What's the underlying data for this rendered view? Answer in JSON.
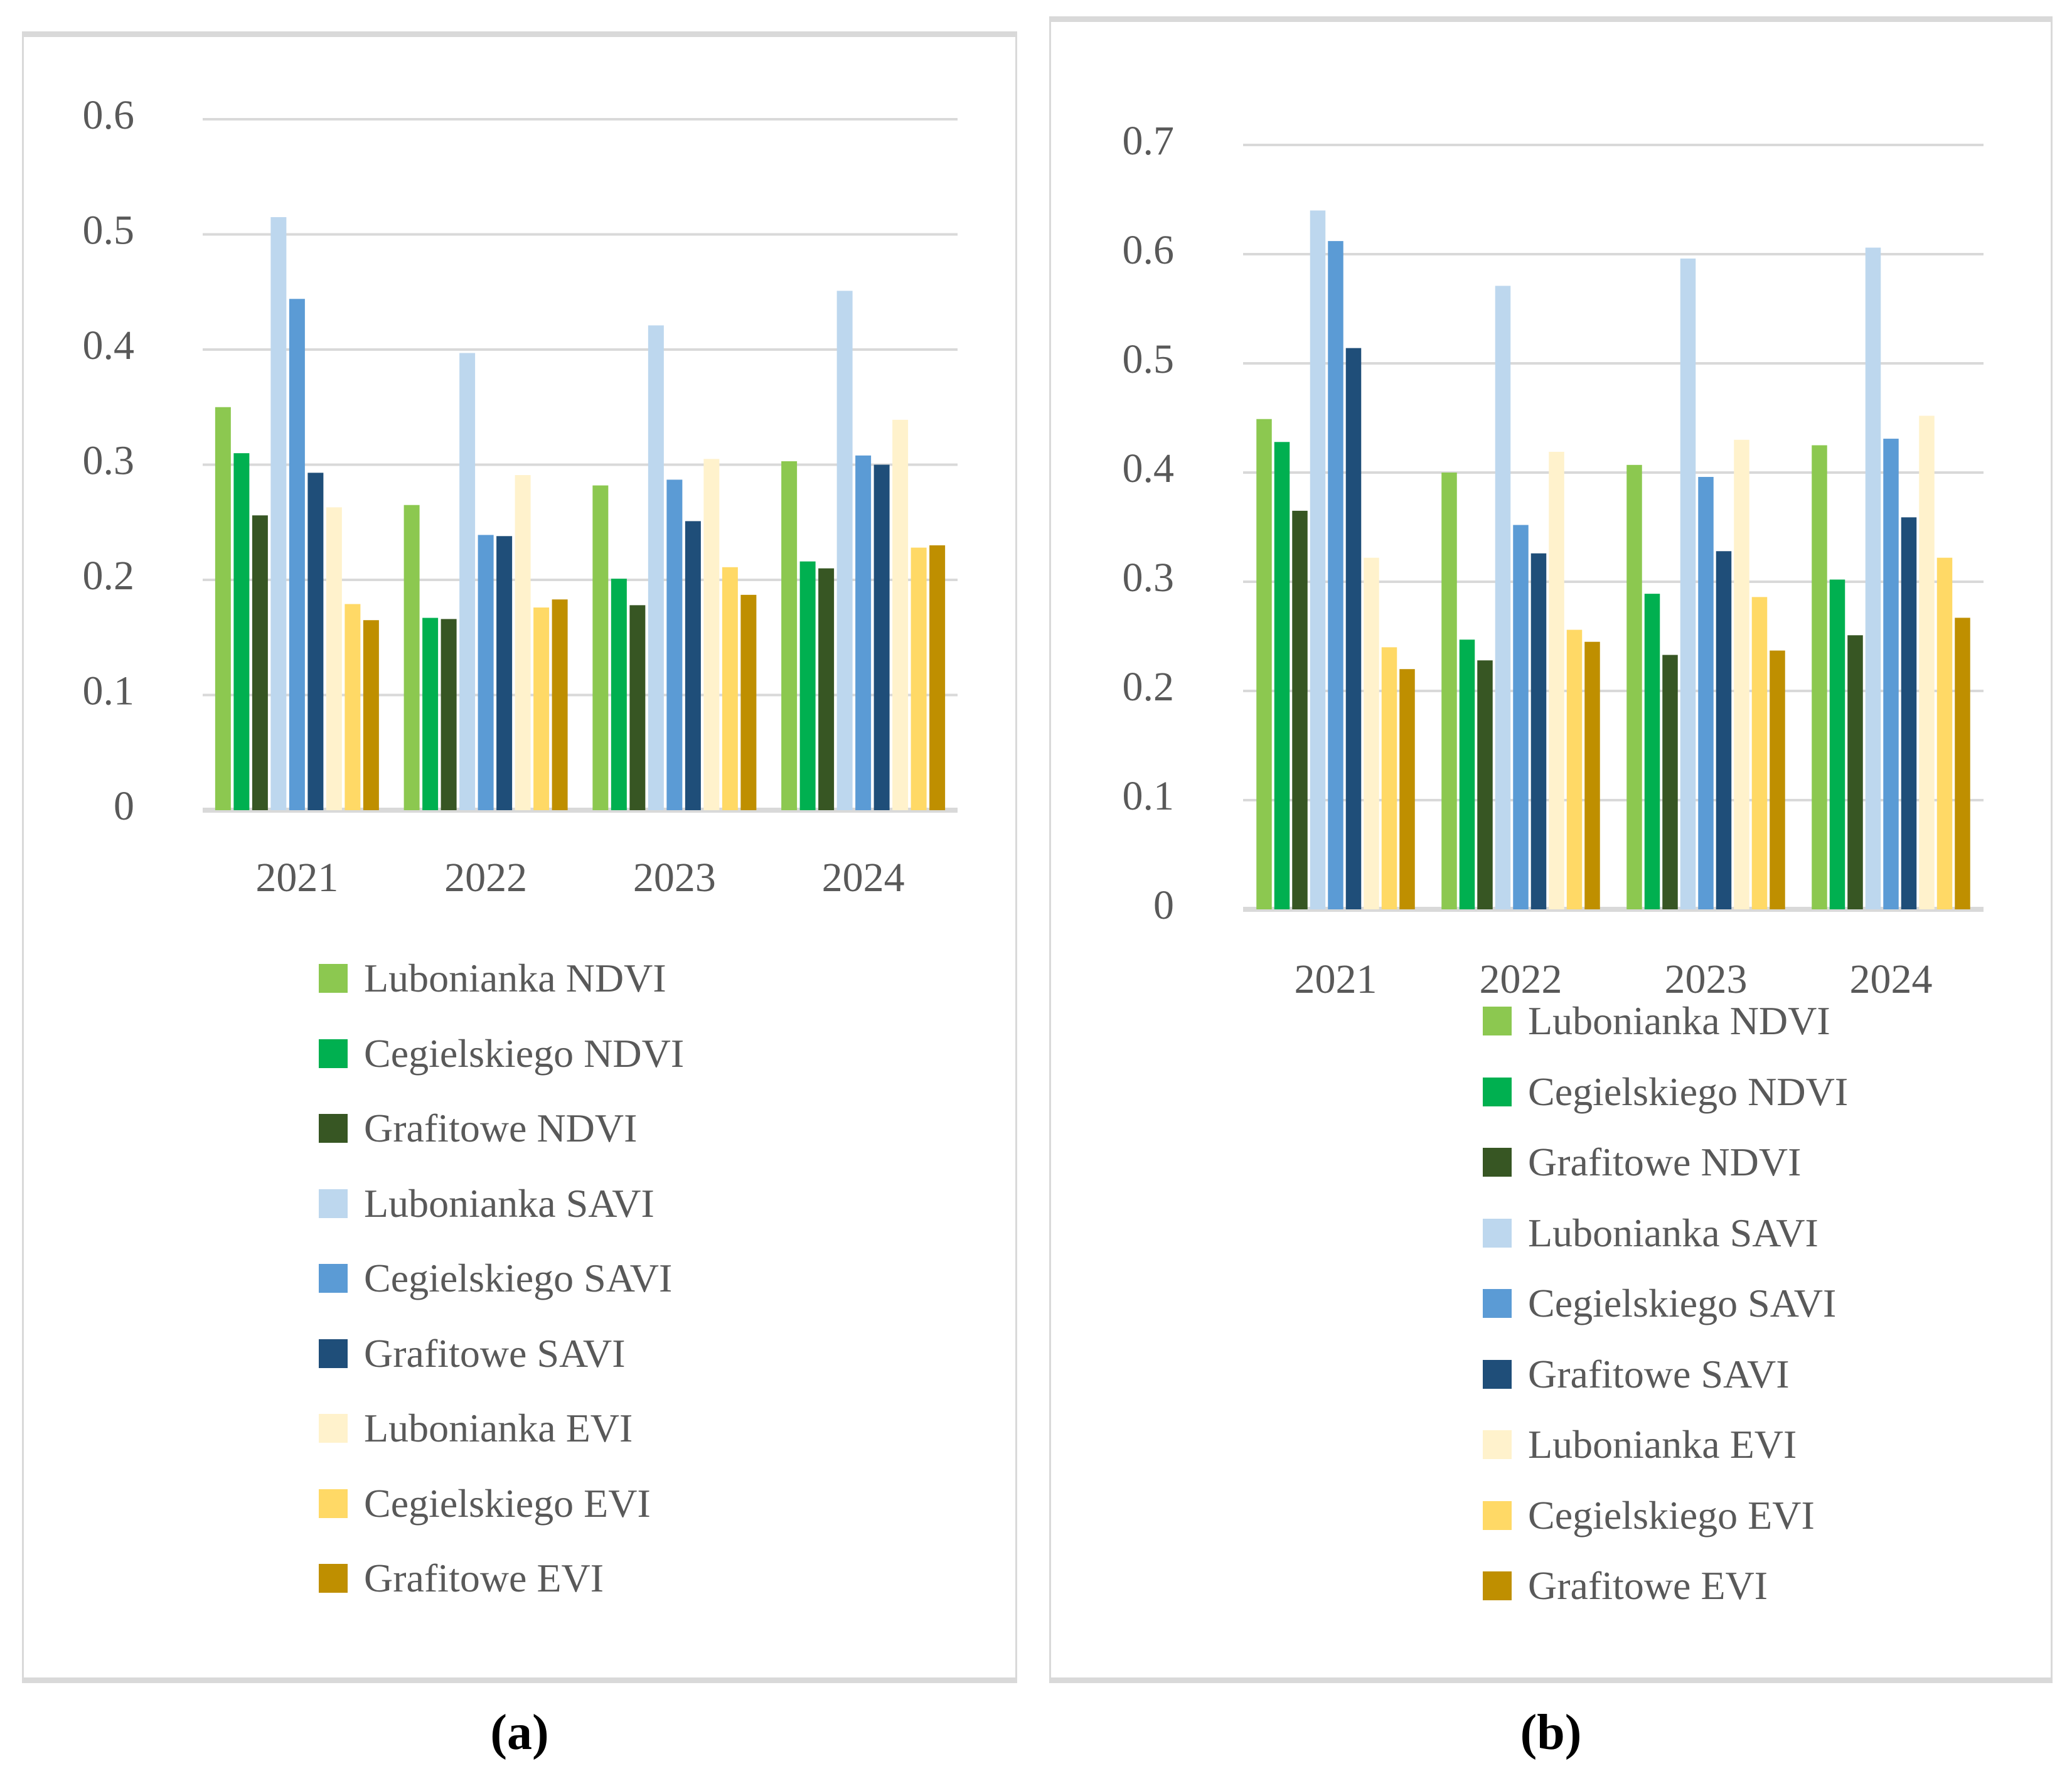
{
  "figure": {
    "captions": {
      "a": "(a)",
      "b": "(b)"
    }
  },
  "colors": {
    "grid": "#d9d9d9",
    "axis_text": "#595959",
    "panel_border": "#d9d9d9"
  },
  "chart_data": [
    {
      "id": "a",
      "type": "bar",
      "title": "",
      "xlabel": "",
      "ylabel": "",
      "ylim": [
        0,
        0.6
      ],
      "ytick_step": 0.1,
      "yticks": [
        "0",
        "0.1",
        "0.2",
        "0.3",
        "0.4",
        "0.5",
        "0.6"
      ],
      "grid": true,
      "legend_position": "bottom",
      "categories": [
        "2021",
        "2022",
        "2023",
        "2024"
      ],
      "series": [
        {
          "name": "Lubonianka NDVI",
          "color": "#8cc850",
          "values": [
            0.35,
            0.265,
            0.282,
            0.303
          ]
        },
        {
          "name": "Cegielskiego NDVI",
          "color": "#00b050",
          "values": [
            0.31,
            0.167,
            0.201,
            0.216
          ]
        },
        {
          "name": "Grafitowe NDVI",
          "color": "#375623",
          "values": [
            0.256,
            0.166,
            0.178,
            0.21
          ]
        },
        {
          "name": "Lubonianka SAVI",
          "color": "#bdd7ee",
          "values": [
            0.515,
            0.397,
            0.421,
            0.451
          ]
        },
        {
          "name": "Cegielskiego SAVI",
          "color": "#5b9bd5",
          "values": [
            0.444,
            0.239,
            0.287,
            0.308
          ]
        },
        {
          "name": "Grafitowe SAVI",
          "color": "#1f4e79",
          "values": [
            0.293,
            0.238,
            0.251,
            0.3
          ]
        },
        {
          "name": "Lubonianka EVI",
          "color": "#fff2cc",
          "values": [
            0.263,
            0.291,
            0.305,
            0.339
          ]
        },
        {
          "name": "Cegielskiego EVI",
          "color": "#ffd966",
          "values": [
            0.179,
            0.176,
            0.211,
            0.228
          ]
        },
        {
          "name": "Grafitowe EVI",
          "color": "#bf8f00",
          "values": [
            0.165,
            0.183,
            0.187,
            0.23
          ]
        }
      ]
    },
    {
      "id": "b",
      "type": "bar",
      "title": "",
      "xlabel": "",
      "ylabel": "",
      "ylim": [
        0,
        0.7
      ],
      "ytick_step": 0.1,
      "yticks": [
        "0",
        "0.1",
        "0.2",
        "0.3",
        "0.4",
        "0.5",
        "0.6",
        "0.7"
      ],
      "grid": true,
      "legend_position": "bottom",
      "categories": [
        "2021",
        "2022",
        "2023",
        "2024"
      ],
      "series": [
        {
          "name": "Lubonianka NDVI",
          "color": "#8cc850",
          "values": [
            0.449,
            0.4,
            0.407,
            0.425
          ]
        },
        {
          "name": "Cegielskiego NDVI",
          "color": "#00b050",
          "values": [
            0.428,
            0.247,
            0.289,
            0.302
          ]
        },
        {
          "name": "Grafitowe NDVI",
          "color": "#375623",
          "values": [
            0.365,
            0.228,
            0.233,
            0.251
          ]
        },
        {
          "name": "Lubonianka SAVI",
          "color": "#bdd7ee",
          "values": [
            0.64,
            0.571,
            0.596,
            0.606
          ]
        },
        {
          "name": "Cegielskiego SAVI",
          "color": "#5b9bd5",
          "values": [
            0.612,
            0.352,
            0.396,
            0.431
          ]
        },
        {
          "name": "Grafitowe SAVI",
          "color": "#1f4e79",
          "values": [
            0.514,
            0.326,
            0.328,
            0.359
          ]
        },
        {
          "name": "Lubonianka EVI",
          "color": "#fff2cc",
          "values": [
            0.322,
            0.419,
            0.43,
            0.452
          ]
        },
        {
          "name": "Cegielskiego EVI",
          "color": "#ffd966",
          "values": [
            0.24,
            0.256,
            0.286,
            0.322
          ]
        },
        {
          "name": "Grafitowe EVI",
          "color": "#bf8f00",
          "values": [
            0.22,
            0.245,
            0.237,
            0.267
          ]
        }
      ]
    }
  ]
}
